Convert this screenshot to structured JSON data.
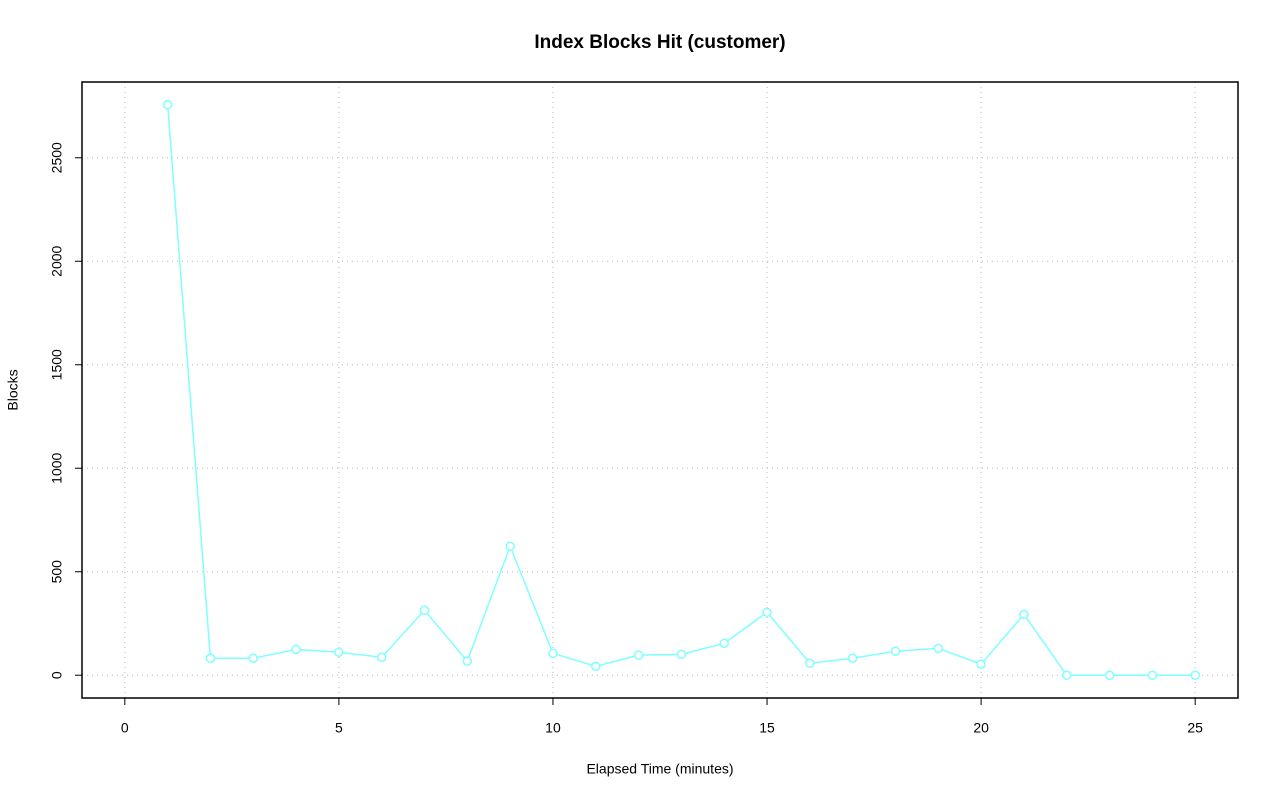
{
  "chart_data": {
    "type": "line",
    "title": "Index Blocks Hit (customer)",
    "x_label": "Elapsed Time (minutes)",
    "y_label": "Blocks",
    "x": [
      1,
      2,
      3,
      4,
      5,
      6,
      7,
      8,
      9,
      10,
      11,
      12,
      13,
      14,
      15,
      16,
      17,
      18,
      19,
      20,
      21,
      22,
      23,
      24,
      25
    ],
    "series": [
      {
        "color": "#7fffff",
        "values": [
          2756,
          82,
          82,
          125,
          111,
          87,
          314,
          68,
          623,
          106,
          43,
          97,
          101,
          154,
          304,
          58,
          82,
          116,
          130,
          53,
          294,
          0,
          0,
          0,
          0
        ]
      }
    ],
    "xlim": [
      -1,
      26
    ],
    "xticks": [
      0,
      5,
      10,
      15,
      20,
      25
    ],
    "ylim": [
      -110,
      2866
    ],
    "yticks": [
      0,
      500,
      1000,
      1500,
      2000,
      2500
    ],
    "grid": true
  }
}
